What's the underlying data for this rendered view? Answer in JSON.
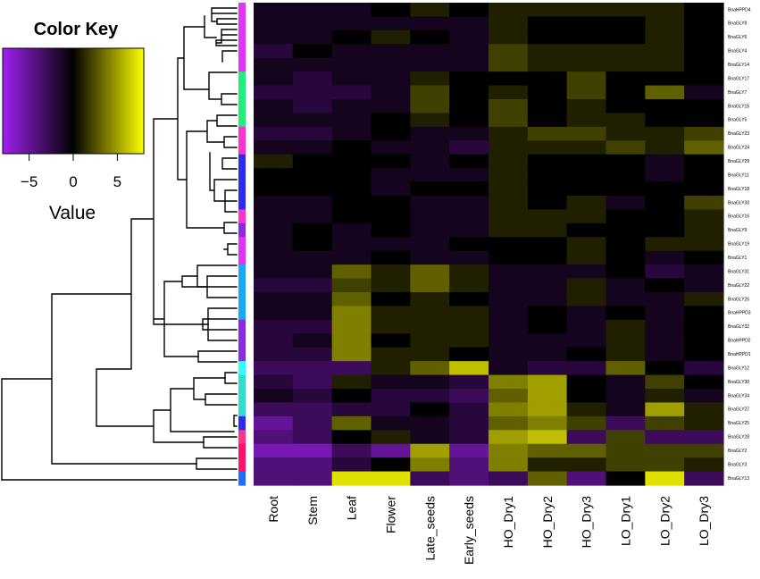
{
  "chart_data": {
    "type": "heatmap",
    "title": "",
    "columns": [
      "Root",
      "Stem",
      "Leaf",
      "Flower",
      "Late_seeds",
      "Early_seeds",
      "HO_Dry1",
      "HO_Dry2",
      "HO_Dry3",
      "LO_Dry1",
      "LO_Dry2",
      "LO_Dry3"
    ],
    "rows": [
      "BnaHPPD4",
      "BnaGLY8",
      "BnaGLY6",
      "BnaGLY4",
      "BnaGLY14",
      "BnaGLY17",
      "BnaGLY7",
      "BnaGLY15",
      "BnaGLY5",
      "BnaGLY23",
      "BnaGLY24",
      "BnaGLY29",
      "BnaGLY11",
      "BnaGLY18",
      "BnaGLY33",
      "BnaGLY16",
      "BnaGLY9",
      "BnaGLY19",
      "BnaGLY1",
      "BnaGLY31",
      "BnaGLY22",
      "BnaGLY26",
      "BnaHPPD3",
      "BnaGLY32",
      "BnaHPPD2",
      "BnaHPPD1",
      "BnaGLY12",
      "BnaGLY30",
      "BnaGLY34",
      "BnaGLY27",
      "BnaGLY25",
      "BnaGLY28",
      "BnaGLY2",
      "BnaGLY3",
      "BnaGLY13"
    ],
    "values": [
      [
        -1,
        -1,
        -1,
        0,
        1,
        0,
        1,
        1,
        1,
        1,
        1,
        0
      ],
      [
        -1,
        -1,
        -1,
        -1,
        -1,
        -1,
        1,
        0,
        0,
        0,
        1,
        0
      ],
      [
        -1,
        -1,
        0,
        1,
        0,
        -1,
        1,
        0,
        0,
        0,
        1,
        0
      ],
      [
        -2,
        0,
        -1,
        -1,
        -1,
        -1,
        2,
        1,
        1,
        1,
        1,
        0
      ],
      [
        -1,
        -1,
        -1,
        -1,
        -1,
        -1,
        2,
        1,
        1,
        1,
        1,
        0
      ],
      [
        -1,
        -2,
        -1,
        -1,
        1,
        0,
        0,
        0,
        2,
        0,
        0,
        0
      ],
      [
        -2,
        -2,
        -2,
        -1,
        2,
        0,
        1,
        0,
        2,
        0,
        3,
        -1
      ],
      [
        -1,
        -2,
        -1,
        -1,
        2,
        0,
        2,
        0,
        1,
        0,
        0,
        0
      ],
      [
        -1,
        -1,
        -1,
        0,
        1,
        0,
        2,
        0,
        1,
        1,
        0,
        0
      ],
      [
        -2,
        -2,
        -1,
        0,
        -1,
        -1,
        1,
        2,
        2,
        1,
        1,
        2
      ],
      [
        -1,
        -1,
        0,
        -1,
        -1,
        -2,
        1,
        1,
        1,
        2,
        1,
        3
      ],
      [
        1,
        0,
        0,
        0,
        -1,
        0,
        1,
        0,
        0,
        0,
        -1,
        0
      ],
      [
        0,
        0,
        0,
        -1,
        -1,
        -1,
        1,
        0,
        0,
        0,
        -1,
        0
      ],
      [
        0,
        0,
        0,
        -1,
        0,
        0,
        1,
        0,
        0,
        0,
        0,
        0
      ],
      [
        -1,
        -1,
        0,
        0,
        -1,
        -1,
        1,
        0,
        1,
        -1,
        0,
        2
      ],
      [
        -1,
        -1,
        0,
        0,
        -1,
        -1,
        1,
        1,
        1,
        0,
        0,
        1
      ],
      [
        -1,
        0,
        -1,
        0,
        -1,
        -1,
        1,
        1,
        0,
        0,
        0,
        1
      ],
      [
        -1,
        0,
        -1,
        -1,
        -1,
        0,
        0,
        0,
        1,
        0,
        1,
        1
      ],
      [
        -1,
        -1,
        -1,
        0,
        -1,
        -1,
        0,
        0,
        1,
        0,
        -1,
        0
      ],
      [
        -1,
        -1,
        3,
        1,
        3,
        1,
        -1,
        -1,
        -1,
        0,
        -2,
        -1
      ],
      [
        -2,
        -2,
        2,
        1,
        3,
        1,
        -1,
        -1,
        1,
        -1,
        0,
        -1
      ],
      [
        -1,
        -1,
        3,
        0,
        1,
        0,
        -1,
        -1,
        1,
        -1,
        -1,
        1
      ],
      [
        -1,
        -1,
        4,
        1,
        1,
        1,
        -1,
        0,
        -1,
        0,
        -1,
        0
      ],
      [
        -2,
        -2,
        4,
        1,
        1,
        1,
        -1,
        0,
        -1,
        1,
        -1,
        0
      ],
      [
        -2,
        -1,
        4,
        0,
        1,
        1,
        -1,
        -1,
        -1,
        1,
        -1,
        0
      ],
      [
        -2,
        -2,
        4,
        1,
        1,
        0,
        -1,
        -1,
        0,
        1,
        -1,
        0
      ],
      [
        -3,
        -3,
        -3,
        1,
        3,
        6,
        -1,
        -2,
        -2,
        3,
        0,
        -2
      ],
      [
        -2,
        -3,
        1,
        -1,
        -1,
        -2,
        4,
        5,
        0,
        -1,
        2,
        0
      ],
      [
        -1,
        -2,
        0,
        -2,
        -2,
        -3,
        3,
        5,
        0,
        -1,
        1,
        -1
      ],
      [
        -3,
        -3,
        -2,
        -2,
        0,
        -2,
        4,
        5,
        1,
        -1,
        5,
        1
      ],
      [
        -5,
        -3,
        3,
        -1,
        -1,
        -2,
        3,
        4,
        2,
        -3,
        2,
        1
      ],
      [
        -4,
        -3,
        0,
        1,
        -1,
        -2,
        5,
        6,
        -3,
        2,
        -3,
        -3
      ],
      [
        -6,
        -6,
        -3,
        -5,
        5,
        -5,
        4,
        3,
        3,
        2,
        2,
        2
      ],
      [
        -4,
        -4,
        -2,
        0,
        4,
        -4,
        4,
        1,
        1,
        2,
        2,
        1
      ],
      [
        -4,
        -4,
        7,
        7,
        -3,
        -4,
        -3,
        3,
        -4,
        0,
        7,
        -3
      ]
    ],
    "side_colors": [
      "#e232f7",
      "#e232f7",
      "#e232f7",
      "#e232f7",
      "#e232f7",
      "#22ee7c",
      "#22ee7c",
      "#22ee7c",
      "#22ee7c",
      "#ff33cc",
      "#ff33cc",
      "#2b2bf2",
      "#2b2bf2",
      "#2b2bf2",
      "#2b2bf2",
      "#ff33cc",
      "#8a2be2",
      "#e232f7",
      "#e232f7",
      "#19a8f2",
      "#19a8f2",
      "#19a8f2",
      "#19a8f2",
      "#8a2be2",
      "#8a2be2",
      "#8a2be2",
      "#33ffff",
      "#33ddcc",
      "#33ddcc",
      "#33ddcc",
      "#2b2bf2",
      "#ff3388",
      "#ff1166",
      "#ff1166",
      "#1f6fff"
    ],
    "color_key": {
      "title": "Color Key",
      "xlabel": "Value",
      "ticks": [
        "−5",
        "0",
        "5"
      ],
      "tick_values": [
        -5,
        0,
        5
      ],
      "range": [
        -8,
        8
      ],
      "low_color": "#a020f0",
      "mid_color": "#000000",
      "high_color": "#ffff00"
    }
  }
}
